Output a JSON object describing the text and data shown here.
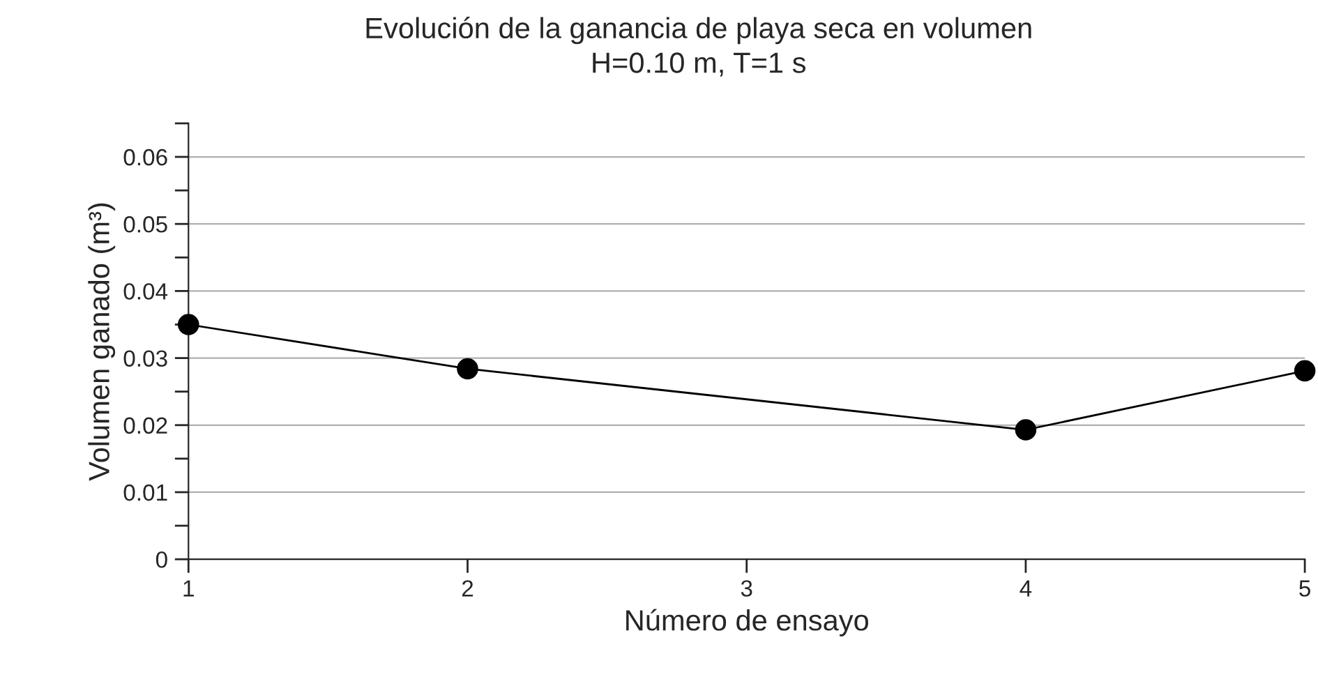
{
  "chart_data": {
    "type": "line",
    "title": "Evolución de la ganancia de playa seca en volumen",
    "subtitle": "H=0.10 m, T=1 s",
    "xlabel": "Número de ensayo",
    "ylabel": "Volumen ganado (m³)",
    "x": [
      1,
      2,
      4,
      5
    ],
    "series": [
      {
        "color": "#000000",
        "values": [
          0.035,
          0.0284,
          0.0193,
          0.0281
        ]
      }
    ],
    "xlim": [
      1,
      5
    ],
    "xticks": [
      1,
      2,
      3,
      4,
      5
    ],
    "ylim": [
      0,
      0.065
    ],
    "yticks": [
      0,
      {
        "value": 0.005,
        "label": null
      },
      {
        "value": 0.01,
        "label": "0.01"
      },
      {
        "value": 0.015,
        "label": null
      },
      {
        "value": 0.02,
        "label": "0.02"
      },
      {
        "value": 0.025,
        "label": null
      },
      {
        "value": 0.03,
        "label": "0.03"
      },
      {
        "value": 0.035,
        "label": null
      },
      {
        "value": 0.04,
        "label": "0.04"
      },
      {
        "value": 0.045,
        "label": null
      },
      {
        "value": 0.05,
        "label": "0.05"
      },
      {
        "value": 0.055,
        "label": null
      },
      {
        "value": 0.06,
        "label": "0.06"
      },
      {
        "value": 0.065,
        "label": null
      }
    ],
    "grid": "y",
    "marker": "circle",
    "line_style": "solid",
    "legend": false
  }
}
